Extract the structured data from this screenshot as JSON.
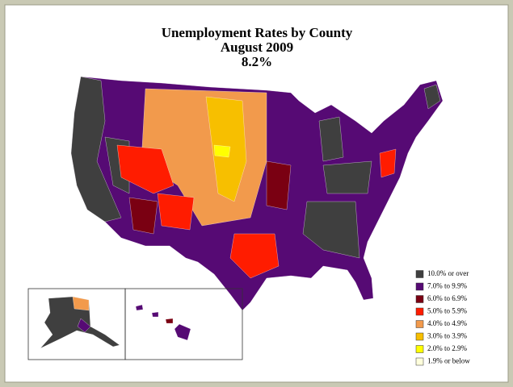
{
  "header": {
    "title": "Unemployment Rates by County",
    "subtitle": "August 2009",
    "rate": "8.2%"
  },
  "legend": [
    {
      "label": "10.0% or over",
      "color": "#3f3f3f"
    },
    {
      "label": "7.0% to 9.9%",
      "color": "#560a74"
    },
    {
      "label": "6.0% to 6.9%",
      "color": "#7a0012"
    },
    {
      "label": "5.0% to 5.9%",
      "color": "#ff1c00"
    },
    {
      "label": "4.0% to 4.9%",
      "color": "#f29a4c"
    },
    {
      "label": "3.0% to 3.9%",
      "color": "#f7bf00"
    },
    {
      "label": "2.0% to 2.9%",
      "color": "#ffff00"
    },
    {
      "label": "1.9% or below",
      "color": "#ffffdc"
    }
  ]
}
